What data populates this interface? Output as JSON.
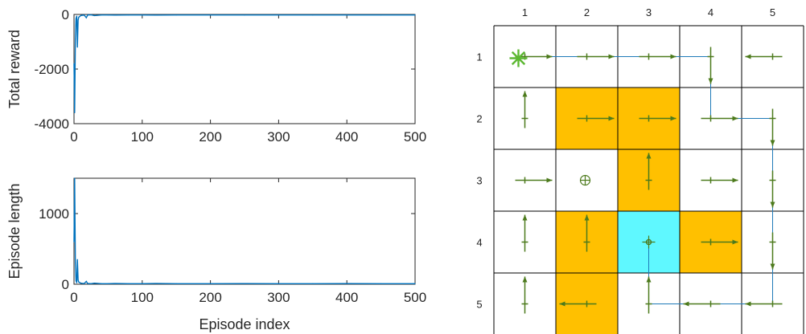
{
  "chart_data": [
    {
      "type": "line",
      "xlabel": "",
      "ylabel": "Total reward",
      "xlim": [
        0,
        500
      ],
      "ylim": [
        -4000,
        0
      ],
      "xticks": [
        "0",
        "100",
        "200",
        "300",
        "400",
        "500"
      ],
      "yticks": [
        "0",
        "-2000",
        "-4000"
      ],
      "color": "#0072BD",
      "grid": false,
      "series": [
        {
          "x": [
            0,
            1,
            2,
            3,
            4,
            5,
            6,
            7,
            8,
            9,
            10,
            12,
            15,
            18,
            20,
            25,
            30,
            40,
            50,
            60,
            80,
            100,
            120,
            150,
            200,
            250,
            300,
            350,
            400,
            450,
            500
          ],
          "y": [
            -1800,
            -3600,
            -900,
            -150,
            -60,
            -1200,
            -200,
            -100,
            -80,
            -60,
            -40,
            -30,
            -25,
            -120,
            -20,
            -15,
            -40,
            -20,
            -20,
            -25,
            -20,
            -20,
            -25,
            -20,
            -20,
            -22,
            -20,
            -20,
            -22,
            -20,
            -20
          ]
        }
      ]
    },
    {
      "type": "line",
      "xlabel": "Episode index",
      "ylabel": "Episode length",
      "xlim": [
        0,
        500
      ],
      "ylim": [
        0,
        1500
      ],
      "xticks": [
        "0",
        "100",
        "200",
        "300",
        "400",
        "500"
      ],
      "yticks": [
        "0",
        "1000"
      ],
      "color": "#0072BD",
      "grid": false,
      "series": [
        {
          "x": [
            0,
            1,
            2,
            3,
            4,
            5,
            6,
            7,
            8,
            9,
            10,
            12,
            15,
            18,
            20,
            25,
            30,
            40,
            50,
            60,
            80,
            100,
            120,
            150,
            200,
            250,
            300,
            350,
            400,
            450,
            500
          ],
          "y": [
            600,
            1500,
            300,
            50,
            20,
            350,
            60,
            30,
            25,
            20,
            15,
            12,
            10,
            40,
            10,
            8,
            15,
            8,
            8,
            10,
            8,
            8,
            10,
            8,
            8,
            9,
            8,
            8,
            9,
            8,
            8
          ]
        }
      ]
    }
  ],
  "grid_world": {
    "col_labels": [
      "1",
      "2",
      "3",
      "4",
      "5"
    ],
    "row_labels": [
      "1",
      "2",
      "3",
      "4",
      "5"
    ],
    "colors": {
      "forbidden": "#FFC000",
      "target": "#5FF8FF",
      "arrow": "#4C7A1C",
      "start": "#5CB832",
      "path": "#1F7AB8"
    },
    "forbidden_cells": [
      [
        2,
        2
      ],
      [
        2,
        3
      ],
      [
        3,
        3
      ],
      [
        4,
        2
      ],
      [
        4,
        4
      ],
      [
        5,
        2
      ]
    ],
    "target_cell": [
      4,
      3
    ],
    "start_cell": [
      1,
      1
    ],
    "circle_plus_cell": [
      3,
      2
    ],
    "policy_arrows": [
      {
        "row": 1,
        "col": 1,
        "dir": "right"
      },
      {
        "row": 1,
        "col": 2,
        "dir": "right"
      },
      {
        "row": 1,
        "col": 3,
        "dir": "right"
      },
      {
        "row": 1,
        "col": 4,
        "dir": "down"
      },
      {
        "row": 1,
        "col": 5,
        "dir": "left"
      },
      {
        "row": 2,
        "col": 1,
        "dir": "up"
      },
      {
        "row": 2,
        "col": 2,
        "dir": "right"
      },
      {
        "row": 2,
        "col": 3,
        "dir": "right"
      },
      {
        "row": 2,
        "col": 4,
        "dir": "right"
      },
      {
        "row": 2,
        "col": 5,
        "dir": "down"
      },
      {
        "row": 3,
        "col": 1,
        "dir": "right"
      },
      {
        "row": 3,
        "col": 3,
        "dir": "up"
      },
      {
        "row": 3,
        "col": 4,
        "dir": "right"
      },
      {
        "row": 3,
        "col": 5,
        "dir": "down"
      },
      {
        "row": 4,
        "col": 1,
        "dir": "up"
      },
      {
        "row": 4,
        "col": 2,
        "dir": "up"
      },
      {
        "row": 4,
        "col": 3,
        "dir": "stay"
      },
      {
        "row": 4,
        "col": 4,
        "dir": "right"
      },
      {
        "row": 4,
        "col": 5,
        "dir": "down"
      },
      {
        "row": 5,
        "col": 1,
        "dir": "up"
      },
      {
        "row": 5,
        "col": 2,
        "dir": "left"
      },
      {
        "row": 5,
        "col": 3,
        "dir": "up"
      },
      {
        "row": 5,
        "col": 4,
        "dir": "left"
      },
      {
        "row": 5,
        "col": 5,
        "dir": "left"
      }
    ],
    "trajectory": [
      [
        1,
        1
      ],
      [
        1,
        2
      ],
      [
        1,
        3
      ],
      [
        1,
        4
      ],
      [
        2,
        4
      ],
      [
        2,
        5
      ],
      [
        3,
        5
      ],
      [
        4,
        5
      ],
      [
        5,
        5
      ],
      [
        5,
        4
      ],
      [
        5,
        3
      ],
      [
        4,
        3
      ]
    ]
  }
}
